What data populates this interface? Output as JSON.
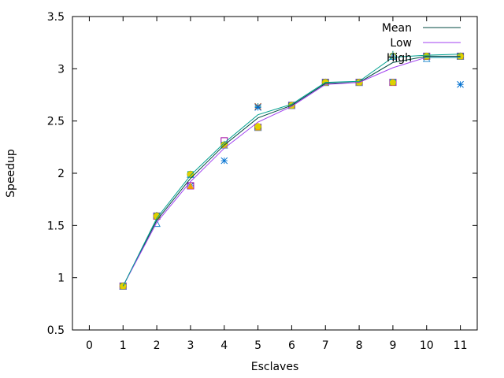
{
  "chart_data": {
    "type": "line",
    "title": "",
    "xlabel": "Esclaves",
    "ylabel": "Speedup",
    "xlim": [
      -0.5,
      11.5
    ],
    "ylim": [
      0.5,
      3.5
    ],
    "xticks": [
      0,
      1,
      2,
      3,
      4,
      5,
      6,
      7,
      8,
      9,
      10,
      11
    ],
    "yticks": [
      0.5,
      1,
      1.5,
      2,
      2.5,
      3,
      3.5
    ],
    "ytick_labels": [
      "0.5",
      "1",
      "1.5",
      "2",
      "2.5",
      "3",
      "3.5"
    ],
    "grid": false,
    "legend_position": "top-right",
    "series": [
      {
        "name": "Mean",
        "color": "#004a40",
        "x": [
          1,
          2,
          3,
          4,
          5,
          6,
          7,
          8,
          9,
          10,
          11
        ],
        "values": [
          0.92,
          1.55,
          1.95,
          2.27,
          2.53,
          2.65,
          2.86,
          2.87,
          3.06,
          3.12,
          3.12
        ]
      },
      {
        "name": "Low",
        "color": "#a040f0",
        "x": [
          1,
          2,
          3,
          4,
          5,
          6,
          7,
          8,
          9,
          10,
          11
        ],
        "values": [
          0.92,
          1.53,
          1.92,
          2.24,
          2.49,
          2.64,
          2.85,
          2.87,
          3.01,
          3.11,
          3.11
        ]
      },
      {
        "name": "High",
        "color": "#00a090",
        "x": [
          1,
          2,
          3,
          4,
          5,
          6,
          7,
          8,
          9,
          10,
          11
        ],
        "values": [
          0.92,
          1.57,
          1.98,
          2.29,
          2.56,
          2.66,
          2.87,
          2.88,
          3.11,
          3.13,
          3.14
        ]
      }
    ],
    "points": [
      {
        "marker": "plus",
        "color": "#008060",
        "x": [
          1,
          2,
          3,
          4,
          5,
          6,
          7,
          8,
          9,
          10,
          11
        ],
        "y": [
          0.92,
          1.6,
          1.99,
          2.28,
          2.64,
          2.65,
          2.87,
          2.87,
          3.14,
          3.12,
          3.12
        ]
      },
      {
        "marker": "cross",
        "color": "#a0522d",
        "x": [
          1,
          2,
          3,
          4,
          5,
          6,
          7,
          8,
          9,
          10,
          11
        ],
        "y": [
          0.92,
          1.59,
          1.88,
          2.27,
          2.64,
          2.65,
          2.87,
          2.87,
          2.87,
          3.12,
          3.12
        ]
      },
      {
        "marker": "star",
        "color": "#0070d0",
        "x": [
          1,
          2,
          3,
          4,
          5,
          6,
          7,
          8,
          9,
          10,
          11
        ],
        "y": [
          0.92,
          1.59,
          1.88,
          2.12,
          2.63,
          2.65,
          2.87,
          2.87,
          2.87,
          3.12,
          2.85
        ]
      },
      {
        "marker": "square",
        "color": "#a000a0",
        "x": [
          1,
          2,
          3,
          4,
          5,
          6,
          7,
          8,
          9,
          10,
          11
        ],
        "y": [
          0.92,
          1.59,
          1.88,
          2.31,
          2.44,
          2.65,
          2.87,
          2.87,
          2.87,
          3.12,
          3.12
        ]
      },
      {
        "marker": "filled-square",
        "color": "#00b0c0",
        "x": [
          1,
          2,
          3,
          4,
          5,
          6,
          7,
          8,
          9,
          10,
          11
        ],
        "y": [
          0.92,
          1.59,
          1.99,
          2.27,
          2.44,
          2.65,
          2.87,
          2.87,
          2.87,
          3.12,
          3.12
        ]
      },
      {
        "marker": "circle",
        "color": "#80a000",
        "x": [
          1,
          2,
          3,
          4,
          5,
          6,
          7,
          8,
          9,
          10,
          11
        ],
        "y": [
          0.92,
          1.59,
          1.99,
          2.27,
          2.44,
          2.65,
          2.87,
          2.87,
          3.12,
          3.12,
          3.12
        ]
      },
      {
        "marker": "triangle",
        "color": "#3090d0",
        "x": [
          1,
          2,
          3,
          4,
          5,
          6,
          7,
          8,
          9,
          10,
          11
        ],
        "y": [
          0.92,
          1.52,
          1.99,
          2.27,
          2.44,
          2.65,
          2.87,
          2.87,
          3.12,
          3.1,
          3.12
        ]
      },
      {
        "marker": "filled-triangle",
        "color": "#f0a000",
        "x": [
          1,
          2,
          3,
          4,
          5,
          6,
          7,
          8,
          9,
          10,
          11
        ],
        "y": [
          0.92,
          1.59,
          1.88,
          2.27,
          2.44,
          2.65,
          2.87,
          2.87,
          2.87,
          3.12,
          3.12
        ]
      },
      {
        "marker": "filled-circle",
        "color": "#e0d000",
        "x": [
          1,
          2,
          3,
          4,
          5,
          6,
          7,
          8,
          9,
          10,
          11
        ],
        "y": [
          0.92,
          1.59,
          1.99,
          2.27,
          2.45,
          2.65,
          2.87,
          2.87,
          2.87,
          3.12,
          3.12
        ]
      }
    ]
  }
}
